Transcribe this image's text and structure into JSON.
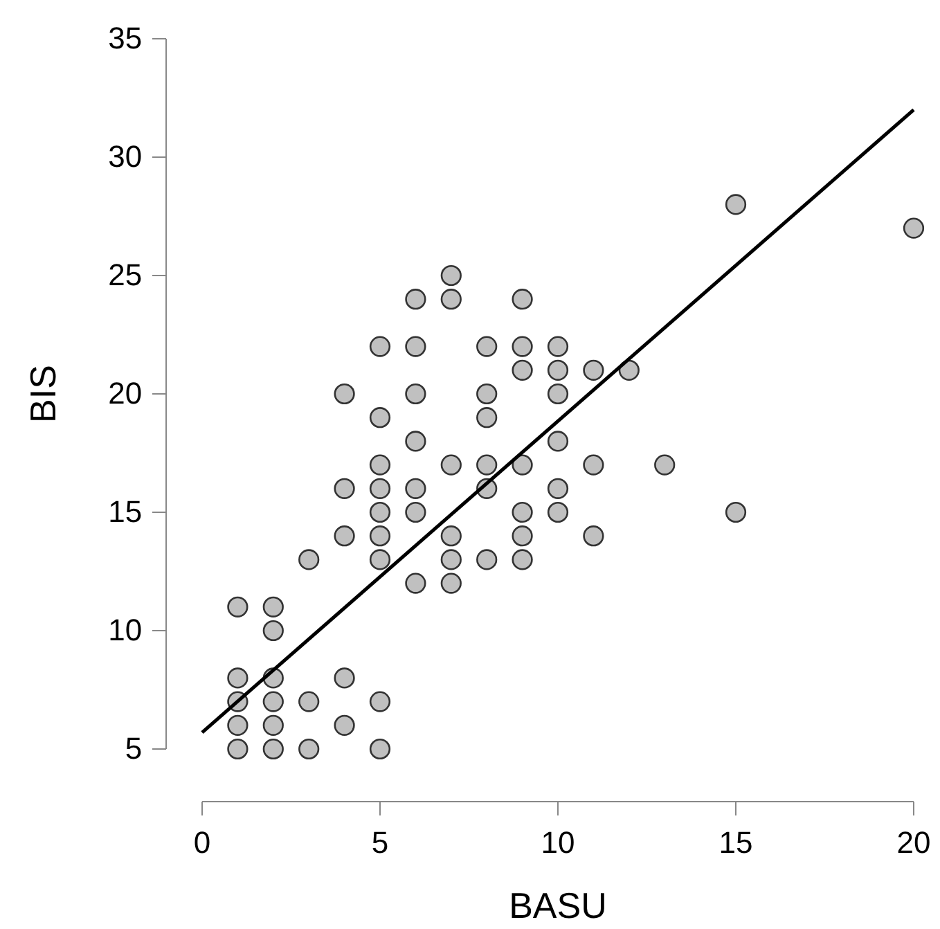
{
  "chart_data": {
    "type": "scatter",
    "xlabel": "BASU",
    "ylabel": "BIS",
    "xlim": [
      0,
      20
    ],
    "ylim": [
      5,
      35
    ],
    "xticks": [
      0,
      5,
      10,
      15,
      20
    ],
    "yticks": [
      5,
      10,
      15,
      20,
      25,
      30,
      35
    ],
    "grid": false,
    "series": [
      {
        "marker": "circle",
        "color": "#c0c0c0",
        "x": [
          1,
          1,
          1,
          1,
          1,
          2,
          2,
          2,
          2,
          2,
          2,
          3,
          3,
          3,
          4,
          4,
          4,
          4,
          4,
          5,
          5,
          5,
          5,
          5,
          5,
          5,
          5,
          5,
          6,
          6,
          6,
          6,
          6,
          6,
          6,
          7,
          7,
          7,
          7,
          7,
          7,
          8,
          8,
          8,
          8,
          8,
          8,
          9,
          9,
          9,
          9,
          9,
          9,
          9,
          10,
          10,
          10,
          10,
          10,
          10,
          11,
          11,
          11,
          12,
          13,
          15,
          15,
          20
        ],
        "values": [
          11,
          8,
          7,
          6,
          5,
          11,
          10,
          8,
          7,
          6,
          5,
          13,
          7,
          5,
          20,
          16,
          14,
          8,
          6,
          22,
          19,
          17,
          16,
          15,
          14,
          13,
          7,
          5,
          24,
          22,
          20,
          18,
          16,
          15,
          12,
          25,
          24,
          17,
          14,
          13,
          12,
          22,
          20,
          19,
          17,
          16,
          13,
          24,
          22,
          21,
          17,
          15,
          14,
          13,
          22,
          21,
          20,
          18,
          16,
          15,
          21,
          17,
          14,
          21,
          17,
          28,
          15,
          27
        ]
      },
      {
        "type": "line",
        "color": "#000000",
        "x": [
          0,
          20
        ],
        "values": [
          5.7,
          32
        ]
      }
    ]
  }
}
